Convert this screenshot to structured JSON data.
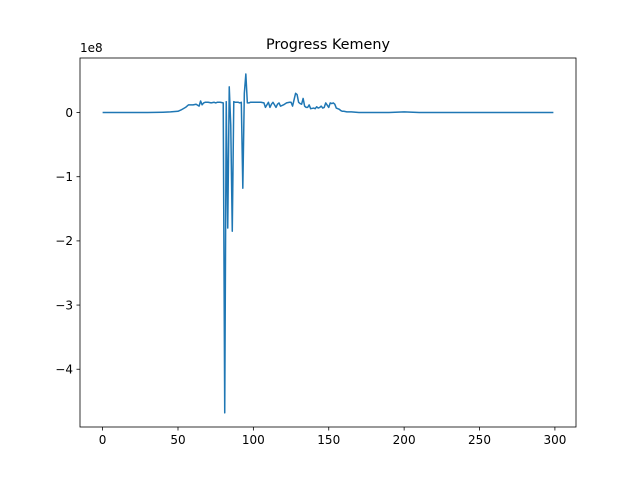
{
  "chart_data": {
    "type": "line",
    "title": "Progress Kemeny",
    "xlabel": "",
    "ylabel": "",
    "y_scale_label": "1e8",
    "xlim": [
      -15,
      314
    ],
    "ylim": [
      -4.9,
      0.85
    ],
    "xticks": [
      0,
      50,
      100,
      150,
      200,
      250,
      300
    ],
    "xtick_labels": [
      "0",
      "50",
      "100",
      "150",
      "200",
      "250",
      "300"
    ],
    "yticks": [
      0,
      -1,
      -2,
      -3,
      -4
    ],
    "ytick_labels": [
      "0",
      "−1",
      "−2",
      "−3",
      "−4"
    ],
    "grid": false,
    "legend": "none",
    "series": [
      {
        "color": "#1f77b4",
        "x": [
          0,
          10,
          20,
          30,
          40,
          45,
          50,
          52,
          55,
          57,
          60,
          62,
          64,
          65,
          66,
          67,
          68,
          70,
          72,
          74,
          75,
          76,
          78,
          80,
          81,
          82,
          83,
          84,
          85,
          86,
          87,
          88,
          89,
          90,
          91,
          92,
          93,
          94,
          95,
          96,
          97,
          98,
          100,
          102,
          105,
          107,
          108,
          110,
          111,
          112,
          113,
          115,
          116,
          117,
          118,
          120,
          122,
          124,
          125,
          126,
          127,
          128,
          129,
          130,
          131,
          132,
          133,
          134,
          135,
          136,
          137,
          138,
          140,
          141,
          142,
          143,
          144,
          145,
          146,
          147,
          148,
          150,
          151,
          152,
          153,
          154,
          155,
          156,
          157,
          158,
          159,
          160,
          162,
          165,
          170,
          180,
          190,
          200,
          210,
          220,
          230,
          240,
          250,
          260,
          270,
          280,
          290,
          299
        ],
        "y": [
          0.0,
          0.0,
          0.0,
          0.0,
          0.005,
          0.01,
          0.02,
          0.04,
          0.08,
          0.12,
          0.12,
          0.13,
          0.1,
          0.18,
          0.12,
          0.15,
          0.16,
          0.16,
          0.15,
          0.16,
          0.15,
          0.16,
          0.16,
          0.15,
          -4.68,
          0.17,
          -1.8,
          0.4,
          -0.2,
          -1.85,
          0.17,
          0.16,
          0.16,
          0.16,
          0.15,
          0.16,
          -1.18,
          0.3,
          0.6,
          0.15,
          0.15,
          0.16,
          0.16,
          0.16,
          0.16,
          0.15,
          0.08,
          0.16,
          0.08,
          0.13,
          0.16,
          0.08,
          0.13,
          0.15,
          0.1,
          0.12,
          0.15,
          0.16,
          0.16,
          0.1,
          0.2,
          0.3,
          0.28,
          0.16,
          0.14,
          0.13,
          0.22,
          0.1,
          0.08,
          0.08,
          0.12,
          0.06,
          0.07,
          0.06,
          0.09,
          0.07,
          0.08,
          0.1,
          0.07,
          0.08,
          0.15,
          0.08,
          0.15,
          0.14,
          0.15,
          0.13,
          0.07,
          0.06,
          0.05,
          0.03,
          0.02,
          0.02,
          0.01,
          0.01,
          0.0,
          0.0,
          0.0,
          0.01,
          0.0,
          0.0,
          0.0,
          0.0,
          0.0,
          0.0,
          0.0,
          0.0,
          0.0,
          0.0
        ]
      }
    ]
  }
}
